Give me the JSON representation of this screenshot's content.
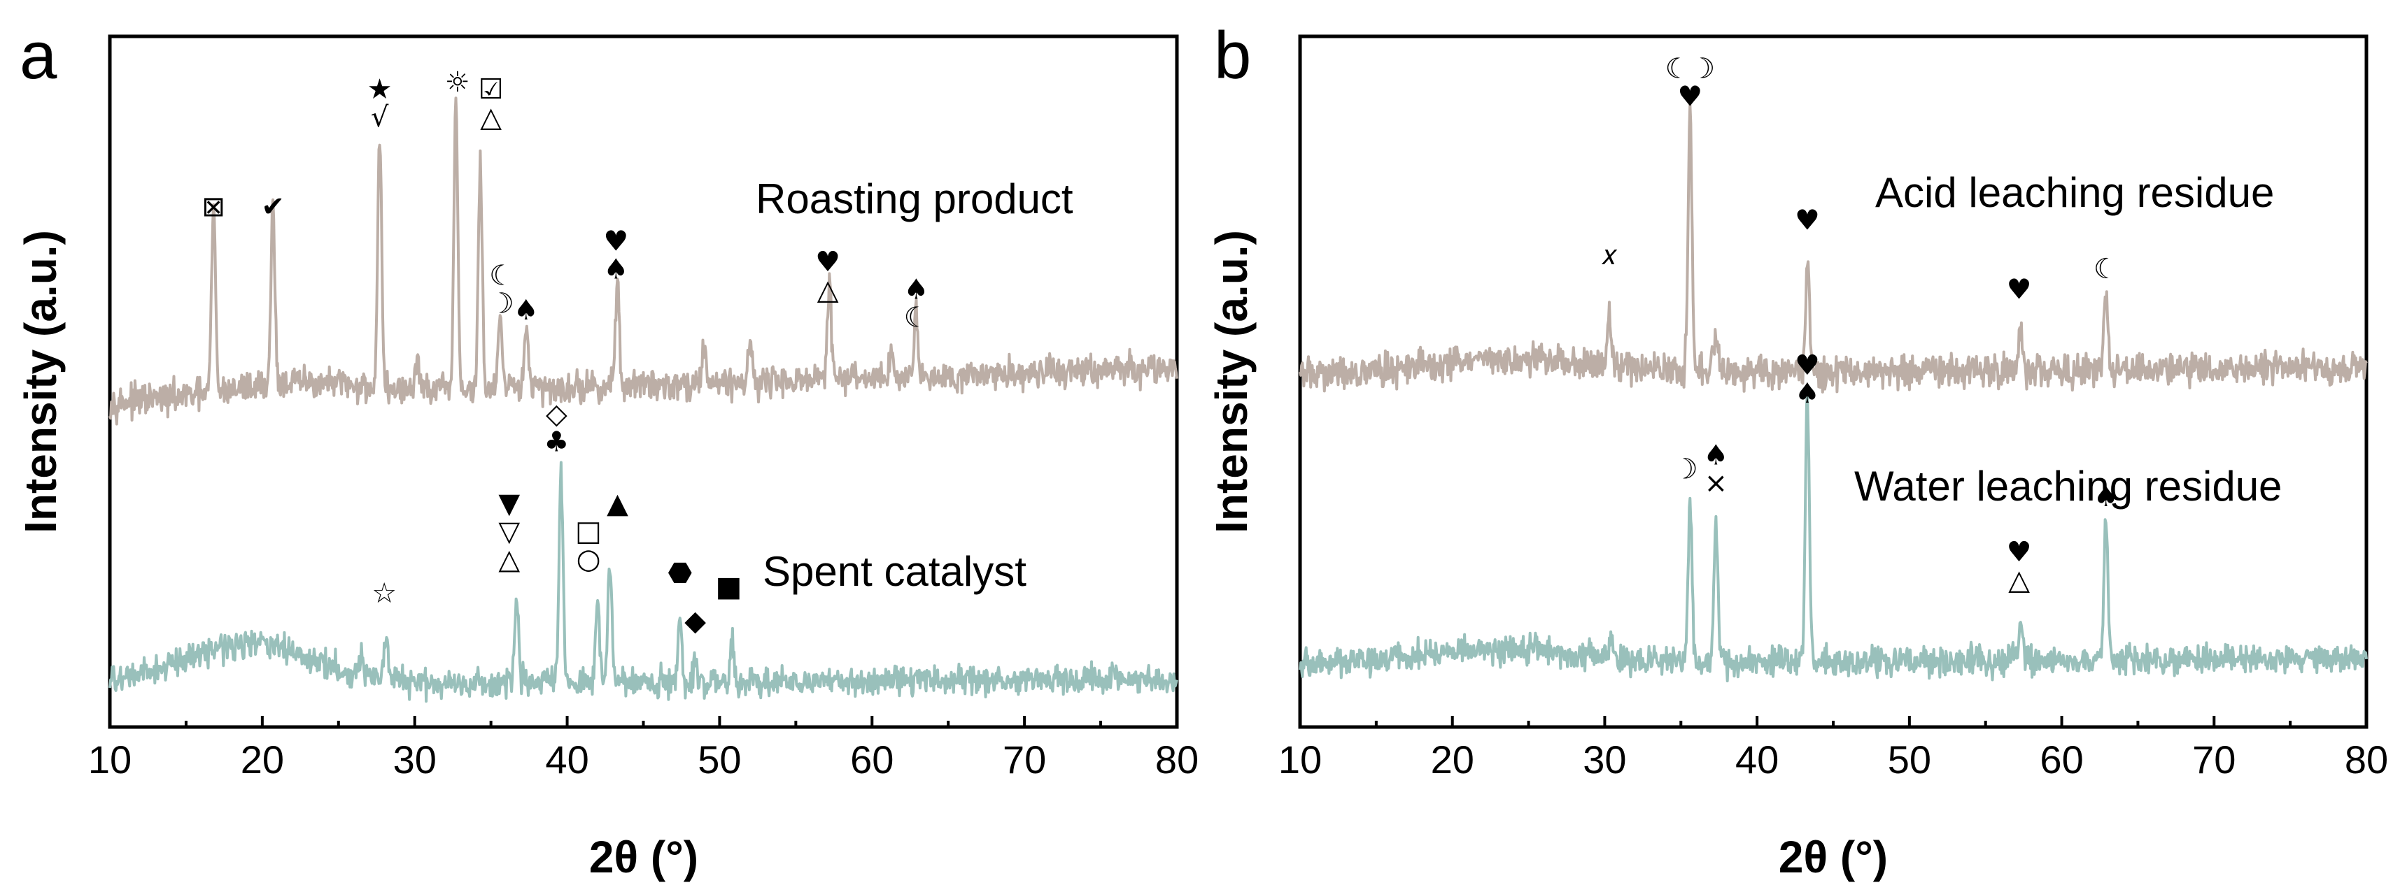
{
  "figure": {
    "panels": [
      "a",
      "b"
    ]
  },
  "colors": {
    "upper": "#bcaea6",
    "lower": "#99c0bb",
    "axis": "#000000"
  },
  "chart_data": [
    {
      "type": "line",
      "panel": "a",
      "xlabel": "2θ (°)",
      "ylabel": "Intensity (a.u.)",
      "xlim": [
        10,
        80
      ],
      "xticks": [
        10,
        20,
        30,
        40,
        50,
        60,
        70,
        80
      ],
      "ylim": [
        0,
        100
      ],
      "series": [
        {
          "name": "Roasting product",
          "position": "upper",
          "baseline": 47,
          "baseline_rise": 5,
          "noise": 2.2,
          "hump": {
            "center": 22,
            "width": 6,
            "height": 2
          },
          "peaks": [
            {
              "x": 16.8,
              "h": 27
            },
            {
              "x": 20.7,
              "h": 26
            },
            {
              "x": 27.7,
              "h": 37
            },
            {
              "x": 30.2,
              "h": 5
            },
            {
              "x": 32.7,
              "h": 42
            },
            {
              "x": 34.3,
              "h": 32
            },
            {
              "x": 35.6,
              "h": 10
            },
            {
              "x": 37.3,
              "h": 10
            },
            {
              "x": 43.3,
              "h": 15
            },
            {
              "x": 49.0,
              "h": 6
            },
            {
              "x": 52.0,
              "h": 6
            },
            {
              "x": 57.2,
              "h": 14
            },
            {
              "x": 61.3,
              "h": 4
            },
            {
              "x": 62.9,
              "h": 9
            }
          ],
          "markers": [
            {
              "x": 16.8,
              "y": 74,
              "symbols": [
                "⊠"
              ]
            },
            {
              "x": 20.7,
              "y": 74,
              "symbols": [
                "✔"
              ]
            },
            {
              "x": 27.7,
              "y": 91,
              "symbols": [
                "★",
                "√"
              ]
            },
            {
              "x": 32.8,
              "y": 92,
              "symbols": [
                "☼"
              ]
            },
            {
              "x": 35.0,
              "y": 91,
              "symbols": [
                "☑",
                "△"
              ]
            },
            {
              "x": 35.7,
              "y": 64,
              "symbols": [
                "☾",
                "☽"
              ]
            },
            {
              "x": 37.3,
              "y": 59,
              "symbols": [
                "♠"
              ]
            },
            {
              "x": 43.2,
              "y": 69,
              "symbols": [
                "♥",
                "♠"
              ]
            },
            {
              "x": 57.1,
              "y": 66,
              "symbols": [
                "♥",
                "△"
              ]
            },
            {
              "x": 62.9,
              "y": 62,
              "symbols": [
                "♠",
                "☾"
              ]
            }
          ]
        },
        {
          "name": "Spent catalyst",
          "position": "lower",
          "baseline": 6,
          "baseline_rise": 1,
          "noise": 2.0,
          "hump": {
            "center": 19,
            "width": 6,
            "height": 6
          },
          "peaks": [
            {
              "x": 26.5,
              "h": 3
            },
            {
              "x": 28.1,
              "h": 6
            },
            {
              "x": 36.7,
              "h": 12
            },
            {
              "x": 39.6,
              "h": 30
            },
            {
              "x": 42.0,
              "h": 12
            },
            {
              "x": 42.8,
              "h": 18
            },
            {
              "x": 47.4,
              "h": 10
            },
            {
              "x": 48.4,
              "h": 3
            },
            {
              "x": 50.8,
              "h": 6
            }
          ],
          "markers": [
            {
              "x": 28.0,
              "y": 18,
              "symbols": [
                "☆"
              ]
            },
            {
              "x": 36.2,
              "y": 31,
              "symbols": [
                "▼",
                "▽",
                "△"
              ]
            },
            {
              "x": 39.3,
              "y": 44,
              "symbols": [
                "◇",
                "♣"
              ]
            },
            {
              "x": 41.4,
              "y": 27,
              "symbols": [
                "□",
                "○"
              ]
            },
            {
              "x": 43.3,
              "y": 31,
              "symbols": [
                "▲"
              ]
            },
            {
              "x": 47.4,
              "y": 21,
              "symbols": [
                "⬣"
              ]
            },
            {
              "x": 48.4,
              "y": 14,
              "symbols": [
                "◆"
              ]
            },
            {
              "x": 50.6,
              "y": 19,
              "symbols": [
                "■"
              ]
            }
          ]
        }
      ]
    },
    {
      "type": "line",
      "panel": "b",
      "xlabel": "2θ (°)",
      "ylabel": "Intensity (a.u.)",
      "xlim": [
        10,
        80
      ],
      "xticks": [
        10,
        20,
        30,
        40,
        50,
        60,
        70,
        80
      ],
      "ylim": [
        0,
        100
      ],
      "series": [
        {
          "name": "Acid leaching residue",
          "position": "upper",
          "baseline": 51,
          "baseline_rise": 1,
          "noise": 2.3,
          "hump": {
            "center": 24,
            "width": 8,
            "height": 2
          },
          "peaks": [
            {
              "x": 30.3,
              "h": 8
            },
            {
              "x": 35.6,
              "h": 38
            },
            {
              "x": 37.3,
              "h": 5
            },
            {
              "x": 43.3,
              "h": 16
            },
            {
              "x": 57.3,
              "h": 6
            },
            {
              "x": 62.9,
              "h": 11
            }
          ],
          "markers": [
            {
              "x": 30.3,
              "y": 67,
              "symbols": [
                "𝑥"
              ]
            },
            {
              "x": 35.6,
              "y": 94,
              "symbols": [
                "☾☽",
                "♥"
              ]
            },
            {
              "x": 43.3,
              "y": 72,
              "symbols": [
                "♥"
              ]
            },
            {
              "x": 57.2,
              "y": 62,
              "symbols": [
                "♥"
              ]
            },
            {
              "x": 62.9,
              "y": 65,
              "symbols": [
                "☾"
              ]
            }
          ]
        },
        {
          "name": "Water leaching residue",
          "position": "lower",
          "baseline": 9,
          "baseline_rise": 1,
          "noise": 2.0,
          "hump": {
            "center": 23,
            "width": 8,
            "height": 2
          },
          "peaks": [
            {
              "x": 30.4,
              "h": 3
            },
            {
              "x": 35.6,
              "h": 24
            },
            {
              "x": 37.3,
              "h": 20
            },
            {
              "x": 43.3,
              "h": 38
            },
            {
              "x": 57.3,
              "h": 5
            },
            {
              "x": 62.9,
              "h": 20
            }
          ],
          "markers": [
            {
              "x": 35.3,
              "y": 36,
              "symbols": [
                "☽"
              ]
            },
            {
              "x": 37.3,
              "y": 38,
              "symbols": [
                "♠",
                "×"
              ]
            },
            {
              "x": 43.3,
              "y": 51,
              "symbols": [
                "♥",
                "♠"
              ]
            },
            {
              "x": 57.2,
              "y": 24,
              "symbols": [
                "♥",
                "△"
              ]
            },
            {
              "x": 62.9,
              "y": 32,
              "symbols": [
                "♠"
              ]
            }
          ]
        }
      ]
    }
  ]
}
